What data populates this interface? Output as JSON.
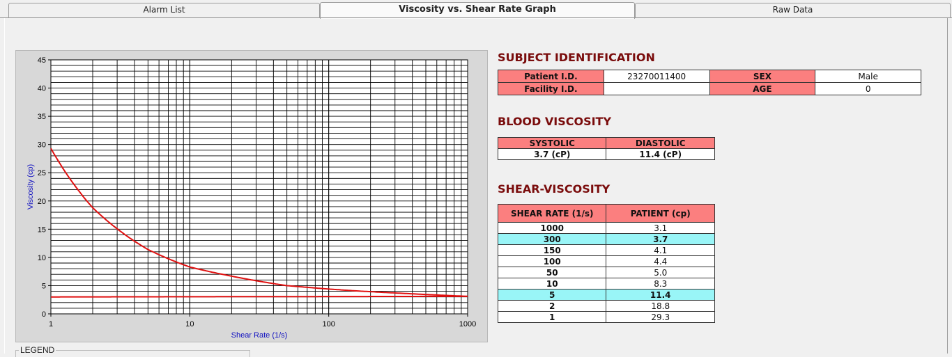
{
  "tabs": [
    {
      "label": "Alarm List"
    },
    {
      "label": "Viscosity vs. Shear Rate Graph"
    },
    {
      "label": "Raw Data"
    }
  ],
  "chart_data": {
    "type": "line",
    "xlabel": "Shear Rate (1/s)",
    "ylabel": "Viscosity (cp)",
    "x_scale": "log",
    "xlim": [
      1,
      1000
    ],
    "ylim": [
      0,
      45
    ],
    "x_ticks": [
      "1",
      "10",
      "100",
      "1000"
    ],
    "y_ticks": [
      "0",
      "5",
      "10",
      "15",
      "20",
      "25",
      "30",
      "35",
      "40",
      "45"
    ],
    "grid": true,
    "series": [
      {
        "x": [
          1,
          2,
          5,
          10,
          50,
          100,
          150,
          300,
          1000
        ],
        "y": [
          29.3,
          18.8,
          11.4,
          8.3,
          5.0,
          4.4,
          4.1,
          3.7,
          3.1
        ],
        "color": "#e01010"
      },
      {
        "x": [
          1,
          1000
        ],
        "y": [
          3.0,
          3.1
        ],
        "color": "#e01010"
      }
    ]
  },
  "legend": {
    "label": "LEGEND"
  },
  "subject": {
    "title": "SUBJECT IDENTIFICATION",
    "patient_id_label": "Patient I.D.",
    "patient_id": "23270011400",
    "sex_label": "SEX",
    "sex": "Male",
    "facility_id_label": "Facility I.D.",
    "facility_id": "",
    "age_label": "AGE",
    "age": "0"
  },
  "blood": {
    "title": "BLOOD VISCOSITY",
    "systolic_label": "SYSTOLIC",
    "diastolic_label": "DIASTOLIC",
    "systolic": "3.7 (cP)",
    "diastolic": "11.4 (cP)"
  },
  "shear": {
    "title": "SHEAR-VISCOSITY",
    "col1": "SHEAR RATE (1/s)",
    "col2": "PATIENT (cp)",
    "rows": [
      {
        "rate": "1000",
        "value": "3.1"
      },
      {
        "rate": "300",
        "value": "3.7"
      },
      {
        "rate": "150",
        "value": "4.1"
      },
      {
        "rate": "100",
        "value": "4.4"
      },
      {
        "rate": "50",
        "value": "5.0"
      },
      {
        "rate": "10",
        "value": "8.3"
      },
      {
        "rate": "5",
        "value": "11.4"
      },
      {
        "rate": "2",
        "value": "18.8"
      },
      {
        "rate": "1",
        "value": "29.3"
      }
    ]
  }
}
